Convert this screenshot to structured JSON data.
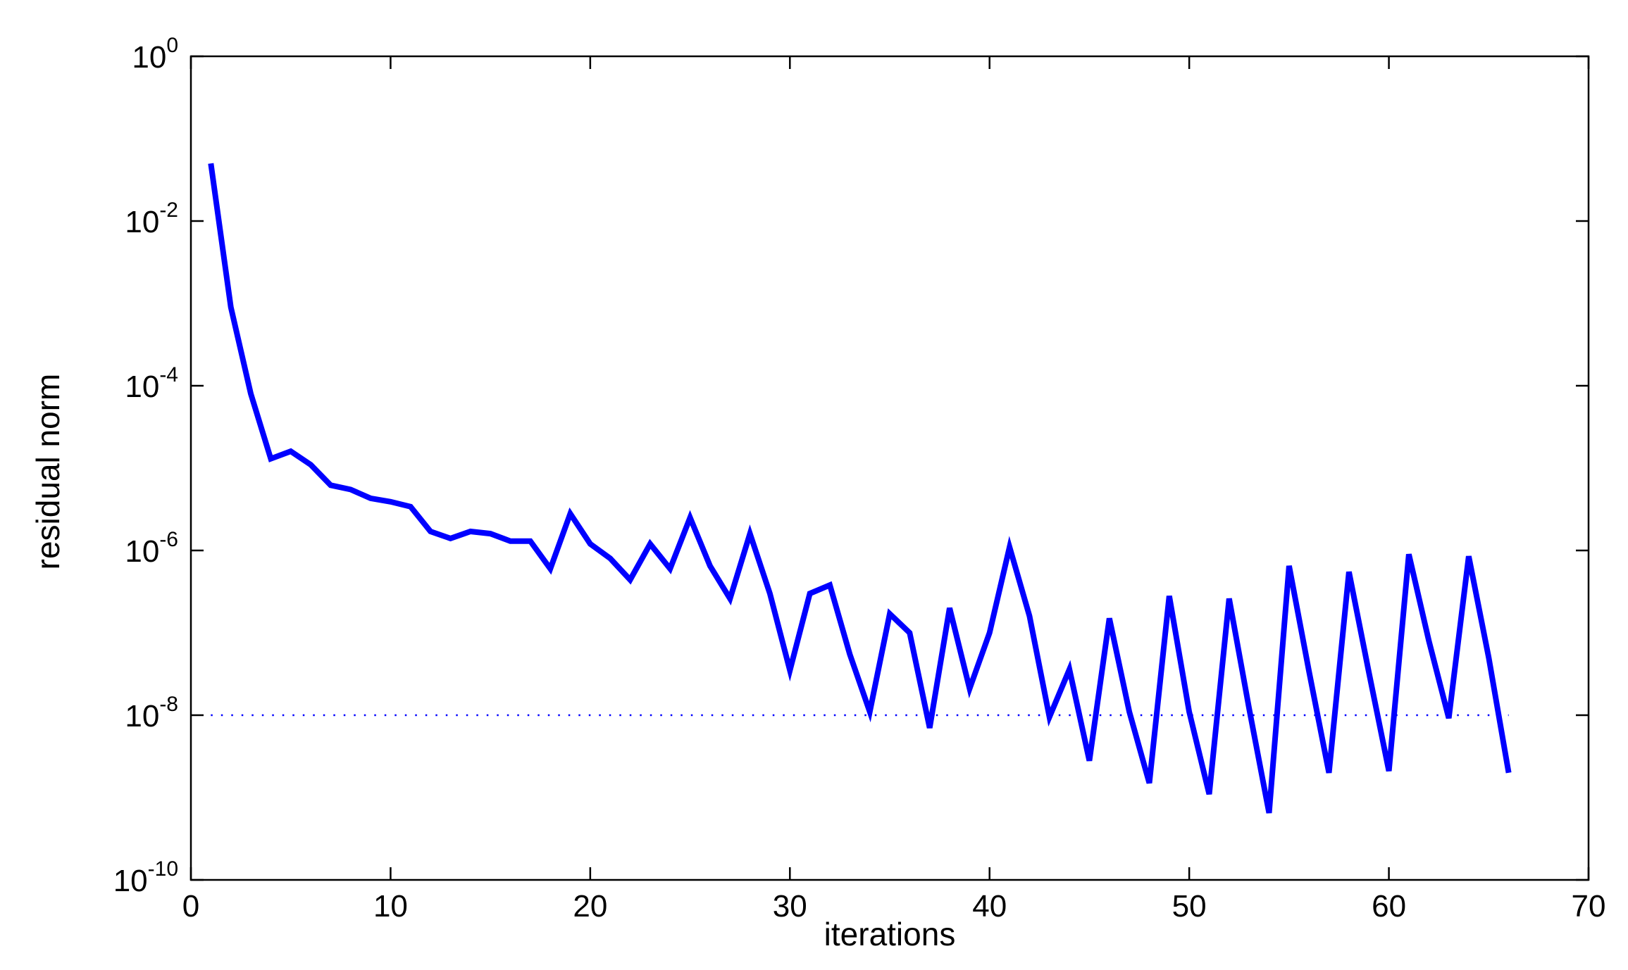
{
  "chart_data": {
    "type": "line",
    "xlabel": "iterations",
    "ylabel": "residual norm",
    "xlim": [
      0,
      70
    ],
    "ylim": [
      1e-10,
      1
    ],
    "yscale": "log",
    "grid": false,
    "legend": "none",
    "x_ticks": [
      "0",
      "10",
      "20",
      "30",
      "40",
      "50",
      "60",
      "70"
    ],
    "y_ticks": [
      {
        "base": "10",
        "exp": "0"
      },
      {
        "base": "10",
        "exp": "-2"
      },
      {
        "base": "10",
        "exp": "-4"
      },
      {
        "base": "10",
        "exp": "-6"
      },
      {
        "base": "10",
        "exp": "-8"
      },
      {
        "base": "10",
        "exp": "-10"
      }
    ],
    "y_tick_values": [
      1,
      0.01,
      0.0001,
      1e-06,
      1e-08,
      1e-10
    ],
    "series": [
      {
        "color": "#0000ff",
        "style": "solid",
        "x": [
          1,
          2,
          3,
          4,
          5,
          6,
          7,
          8,
          9,
          10,
          11,
          12,
          13,
          14,
          15,
          16,
          17,
          18,
          19,
          20,
          21,
          22,
          23,
          24,
          25,
          26,
          27,
          28,
          29,
          30,
          31,
          32,
          33,
          34,
          35,
          36,
          37,
          38,
          39,
          40,
          41,
          42,
          43,
          44,
          45,
          46,
          47,
          48,
          49,
          50,
          51,
          52,
          53,
          54,
          55,
          56,
          57,
          58,
          59,
          60,
          61,
          62,
          63,
          64,
          65,
          66
        ],
        "y": [
          0.05,
          0.0009,
          8e-05,
          1.3e-05,
          1.6e-05,
          1.1e-05,
          6.2e-06,
          5.5e-06,
          4.3e-06,
          3.9e-06,
          3.4e-06,
          1.7e-06,
          1.4e-06,
          1.7e-06,
          1.6e-06,
          1.3e-06,
          1.3e-06,
          6e-07,
          2.8e-06,
          1.2e-06,
          8e-07,
          4.4e-07,
          1.2e-06,
          6e-07,
          2.5e-06,
          6.5e-07,
          2.6e-07,
          1.6e-06,
          3e-07,
          3.5e-08,
          3e-07,
          3.8e-07,
          5.5e-08,
          1.1e-08,
          1.7e-07,
          1e-07,
          7e-09,
          2e-07,
          2.1e-08,
          1e-07,
          1.1e-06,
          1.6e-07,
          9.5e-09,
          3.6e-08,
          2.8e-09,
          1.5e-07,
          1.1e-08,
          1.5e-09,
          2.8e-07,
          1.1e-08,
          1.1e-09,
          2.6e-07,
          1.2e-08,
          6.5e-10,
          6.5e-07,
          3.4e-08,
          2e-09,
          5.5e-07,
          3.3e-08,
          2.1e-09,
          9e-07,
          8e-08,
          9.2e-09,
          8.5e-07,
          5e-08,
          2e-09
        ]
      },
      {
        "color": "#0000ff",
        "style": "dotted",
        "x": [
          1,
          66
        ],
        "y": [
          1e-08,
          1e-08
        ]
      }
    ]
  }
}
